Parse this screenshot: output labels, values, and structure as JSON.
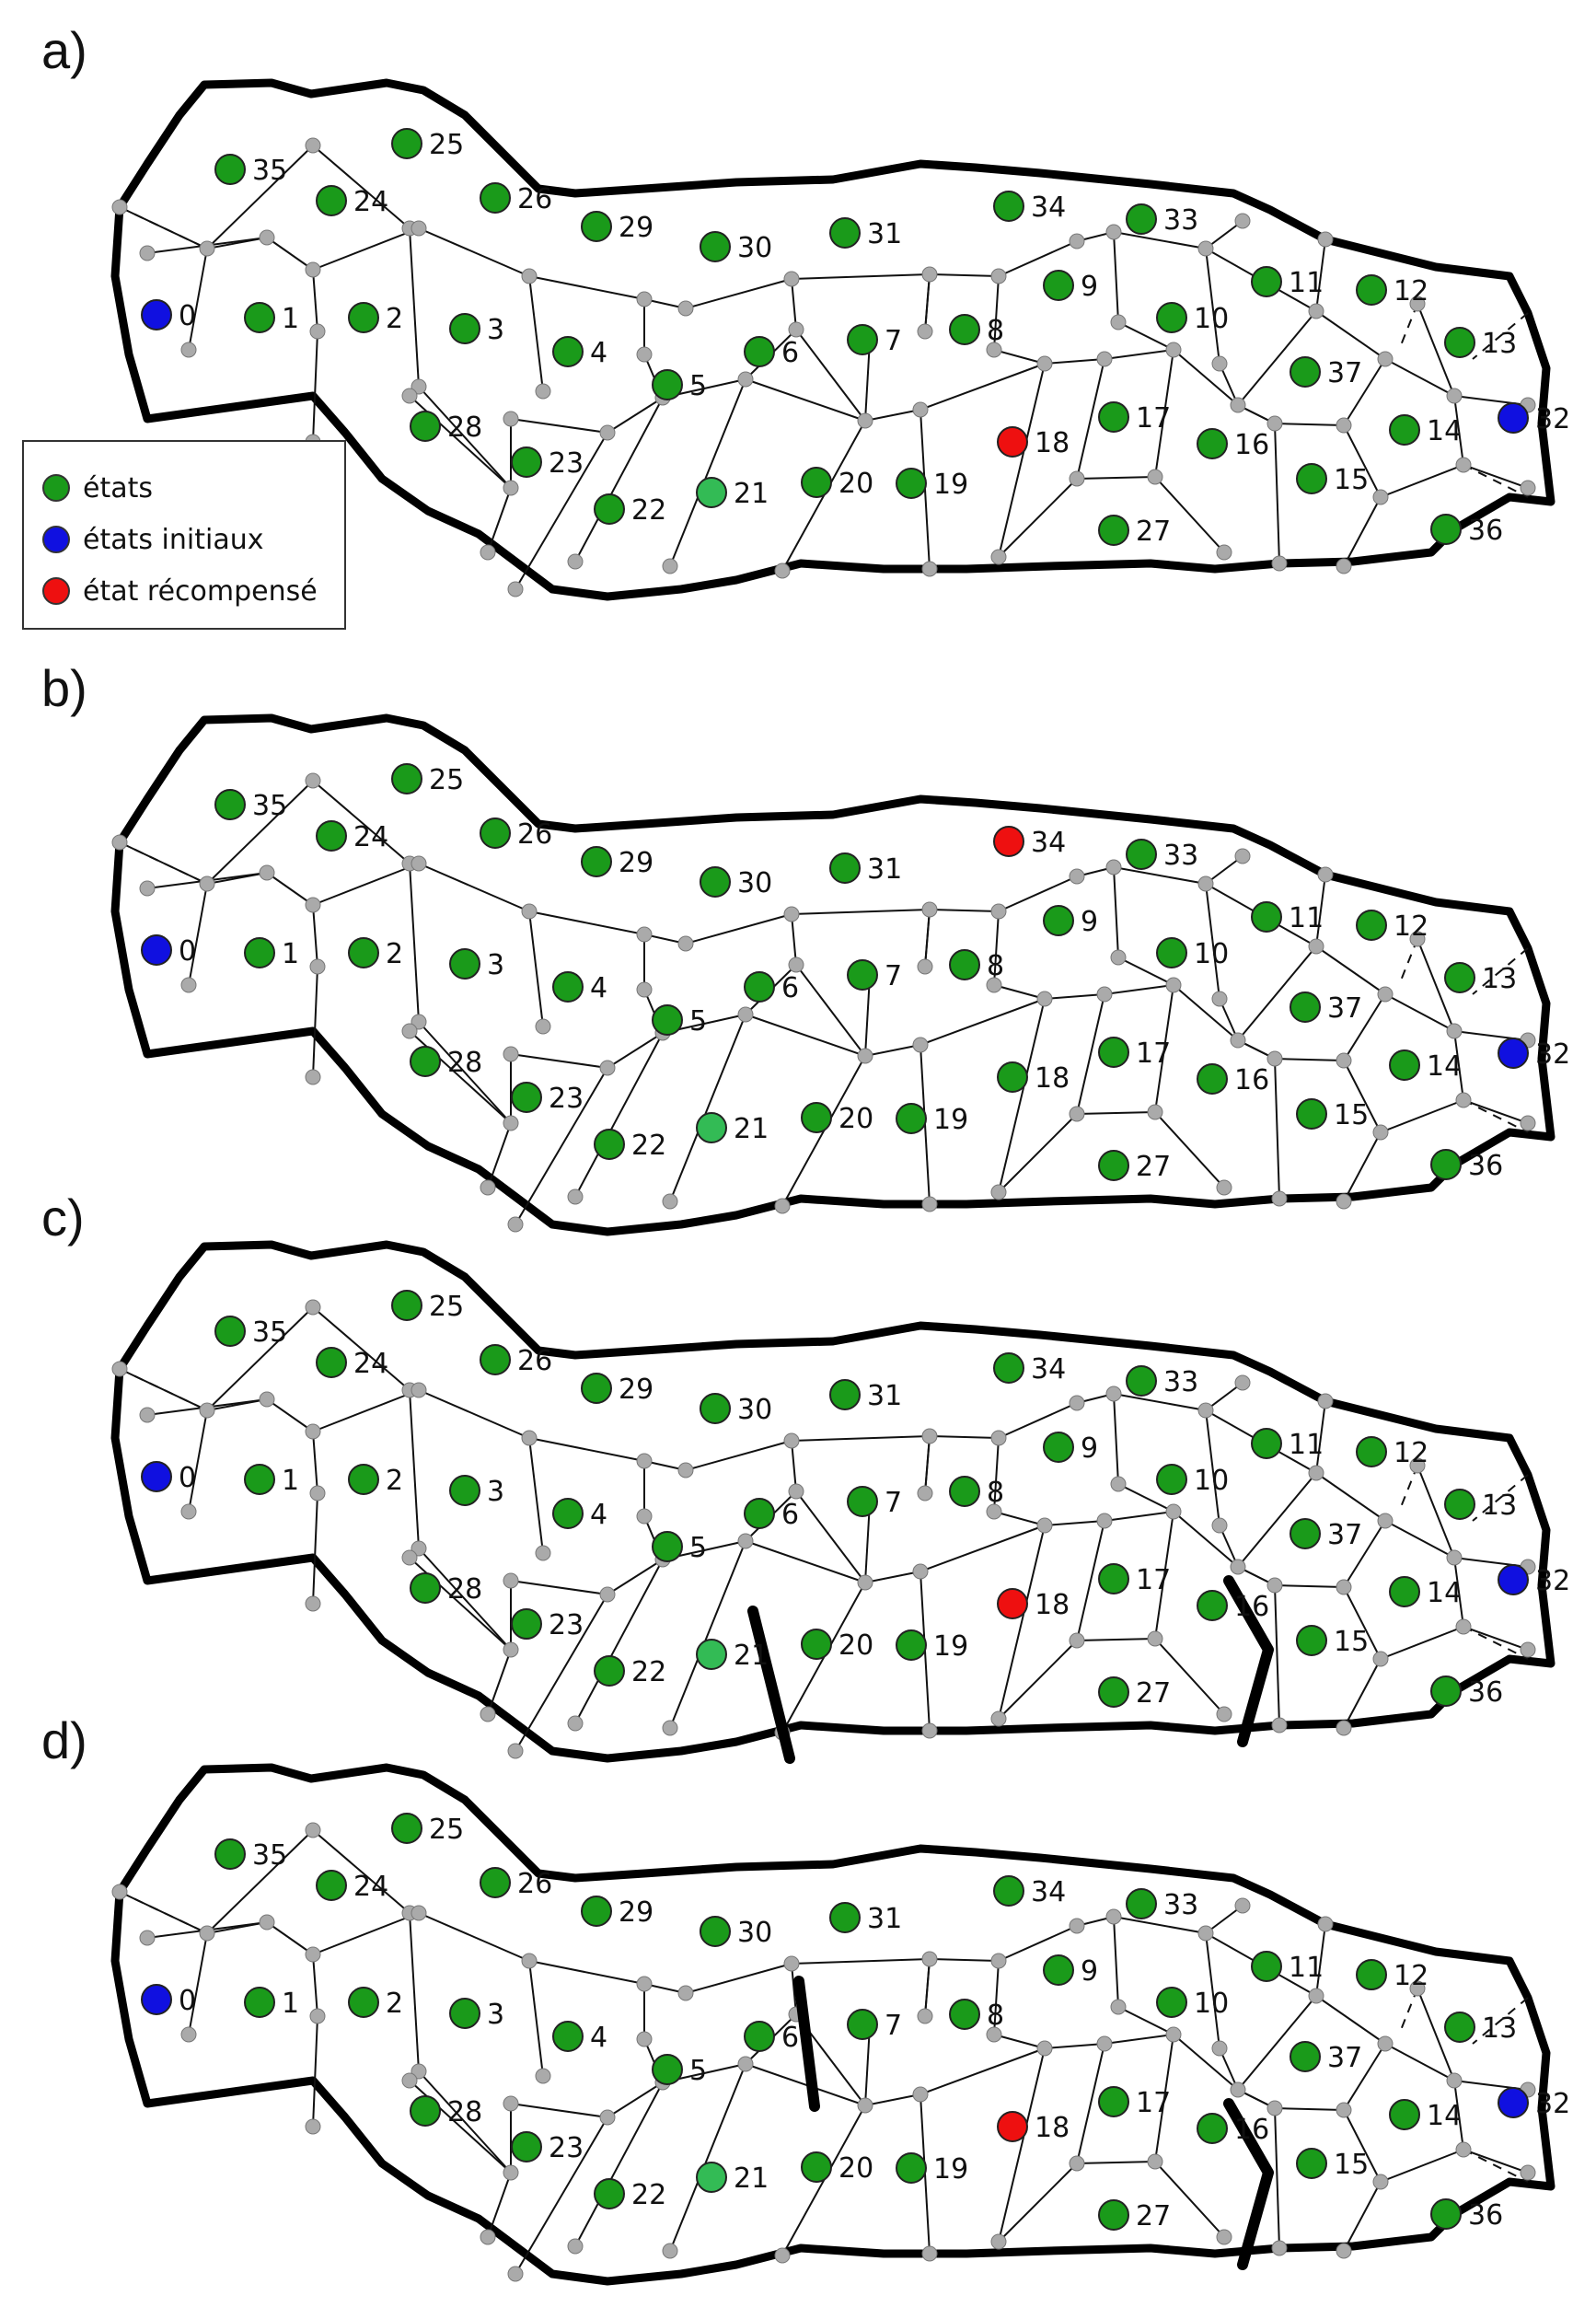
{
  "panels": [
    {
      "label": "a)",
      "reward_state": "18",
      "thick_walls": []
    },
    {
      "label": "b)",
      "reward_state": "34",
      "thick_walls": []
    },
    {
      "label": "c)",
      "reward_state": "18",
      "thick_walls": [
        "21-20",
        "16-15"
      ]
    },
    {
      "label": "d)",
      "reward_state": "18",
      "thick_walls": [
        "6-7",
        "16-15"
      ]
    }
  ],
  "legend": {
    "items": [
      {
        "label": "états",
        "color": "#1a9a1a"
      },
      {
        "label": "états initiaux",
        "color": "#1010e0"
      },
      {
        "label": "état récompensé",
        "color": "#ee1010"
      }
    ]
  },
  "state_labels": [
    "0",
    "1",
    "2",
    "3",
    "4",
    "5",
    "6",
    "7",
    "8",
    "9",
    "10",
    "11",
    "12",
    "13",
    "14",
    "15",
    "16",
    "17",
    "18",
    "19",
    "20",
    "21",
    "22",
    "23",
    "24",
    "25",
    "26",
    "27",
    "28",
    "29",
    "30",
    "31",
    "32",
    "33",
    "34",
    "35",
    "36",
    "37"
  ],
  "initial_states": [
    "0",
    "32"
  ],
  "colors": {
    "state": "#1a9a1a",
    "state_light": "#33bb55",
    "initial": "#1010e0",
    "reward": "#ee1010",
    "vertex": "#aaaaaa",
    "wall": "#000000"
  }
}
